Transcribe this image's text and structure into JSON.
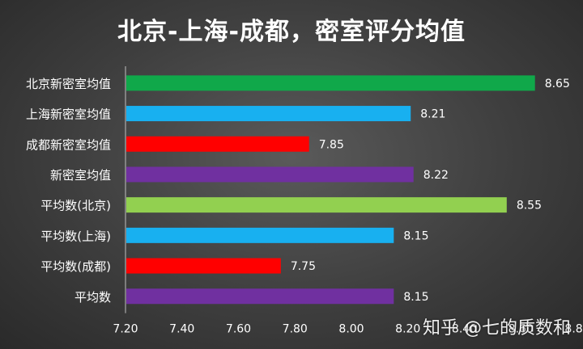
{
  "chart_data": {
    "type": "bar",
    "orientation": "horizontal",
    "title": "北京-上海-成都，密室评分均值",
    "categories": [
      "北京新密室均值",
      "上海新密室均值",
      "成都新密室均值",
      "新密室均值",
      "平均数(北京)",
      "平均数(上海)",
      "平均数(成都)",
      "平均数"
    ],
    "values": [
      8.65,
      8.21,
      7.85,
      8.22,
      8.55,
      8.15,
      7.75,
      8.15
    ],
    "value_labels": [
      "8.65",
      "8.21",
      "7.85",
      "8.22",
      "8.55",
      "8.15",
      "7.75",
      "8.15"
    ],
    "colors": [
      "#10A84A",
      "#18B0F0",
      "#FF0000",
      "#7030A0",
      "#92D050",
      "#18B0F0",
      "#FF0000",
      "#7030A0"
    ],
    "xlim": [
      7.2,
      8.8
    ],
    "xticks": [
      "7.20",
      "7.40",
      "7.60",
      "7.80",
      "8.00",
      "8.20",
      "8.40",
      "8.60",
      "8.80"
    ],
    "xlabel": "",
    "ylabel": "",
    "grid": false,
    "legend": "none"
  },
  "watermark": "知乎 @七的质数和",
  "colors": {
    "text": "#ffffff",
    "axis": "#bfbfbf"
  }
}
